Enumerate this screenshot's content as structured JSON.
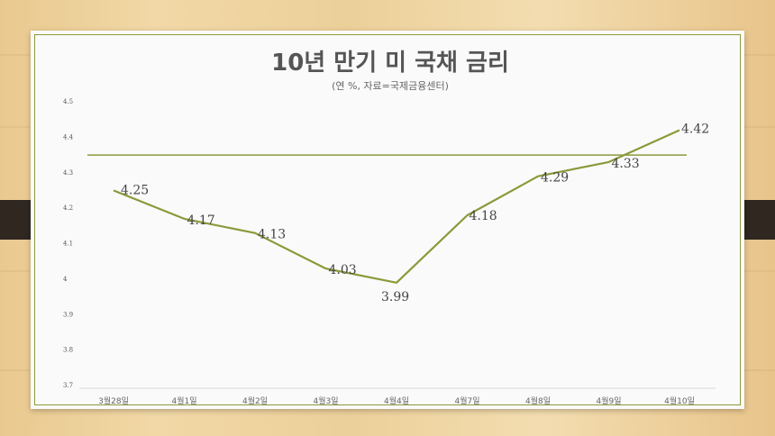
{
  "chart_data": {
    "type": "line",
    "title": "10년 만기 미 국채 금리",
    "subtitle": "(연 %, 자료=국제금융센터)",
    "categories": [
      "3월28일",
      "4월1일",
      "4월2일",
      "4월3일",
      "4월4일",
      "4월7일",
      "4월8일",
      "4월9일",
      "4월10일"
    ],
    "values": [
      4.25,
      4.17,
      4.13,
      4.03,
      3.99,
      4.18,
      4.29,
      4.33,
      4.42
    ],
    "data_labels": [
      "4.25",
      "4.17",
      "4.13",
      "4.03",
      "3.99",
      "4.18",
      "4.29",
      "4.33",
      "4.42"
    ],
    "yticks": [
      3.7,
      3.8,
      3.9,
      4,
      4.1,
      4.2,
      4.3,
      4.4,
      4.5
    ],
    "ylim": [
      3.7,
      4.5
    ],
    "reference_line": 4.35,
    "grid": false,
    "colors": {
      "line": "#8a9a3a",
      "reference": "#8a9a3a",
      "border": "#8a9a3a"
    }
  }
}
